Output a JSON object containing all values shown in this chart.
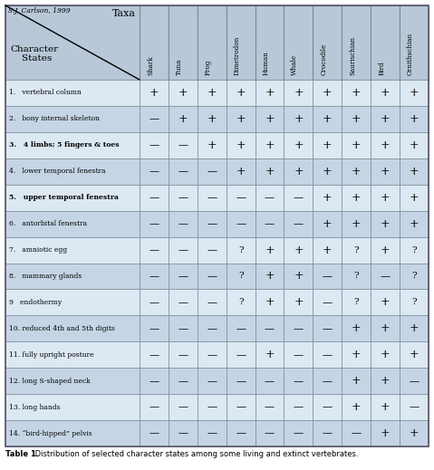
{
  "title_author": "S.J. Carlson, 1999",
  "taxa": [
    "Shark",
    "Tuna",
    "Frog",
    "Dimetrodon",
    "Human",
    "Whale",
    "Crocodile",
    "Saurischian",
    "Bird",
    "Ornithschian"
  ],
  "characters": [
    "1.   vertebral column",
    "2.   bony internal skeleton",
    "3.   4 limbs; 5 fingers & toes",
    "4.   lower temporal fenestra",
    "5.   upper temporal fenestra",
    "6.   antorbital fenestra",
    "7.   amniotic egg",
    "8.   mammary glands",
    "9   endothermy",
    "10. reduced 4th and 5th digits",
    "11. fully upright posture",
    "12. long S-shaped neck",
    "13. long hands",
    "14. “bird-hipped” pelvis"
  ],
  "bold_rows": [
    3,
    5
  ],
  "data": [
    [
      "+",
      "+",
      "+",
      "+",
      "+",
      "+",
      "+",
      "+",
      "+",
      "+"
    ],
    [
      "—",
      "+",
      "+",
      "+",
      "+",
      "+",
      "+",
      "+",
      "+",
      "+"
    ],
    [
      "—",
      "—",
      "+",
      "+",
      "+",
      "+",
      "+",
      "+",
      "+",
      "+"
    ],
    [
      "—",
      "—",
      "—",
      "+",
      "+",
      "+",
      "+",
      "+",
      "+",
      "+"
    ],
    [
      "—",
      "—",
      "—",
      "—",
      "—",
      "—",
      "+",
      "+",
      "+",
      "+"
    ],
    [
      "—",
      "—",
      "—",
      "—",
      "—",
      "—",
      "+",
      "+",
      "+",
      "+"
    ],
    [
      "—",
      "—",
      "—",
      "?",
      "+",
      "+",
      "+",
      "?",
      "+",
      "?"
    ],
    [
      "—",
      "—",
      "—",
      "?",
      "+",
      "+",
      "—",
      "?",
      "—",
      "?"
    ],
    [
      "—",
      "—",
      "—",
      "?",
      "+",
      "+",
      "—",
      "?",
      "+",
      "?"
    ],
    [
      "—",
      "—",
      "—",
      "—",
      "—",
      "—",
      "—",
      "+",
      "+",
      "+"
    ],
    [
      "—",
      "—",
      "—",
      "—",
      "+",
      "—",
      "—",
      "+",
      "+",
      "+"
    ],
    [
      "—",
      "—",
      "—",
      "—",
      "—",
      "—",
      "—",
      "+",
      "+",
      "—"
    ],
    [
      "—",
      "—",
      "—",
      "—",
      "—",
      "—",
      "—",
      "+",
      "+",
      "—"
    ],
    [
      "—",
      "—",
      "—",
      "—",
      "—",
      "—",
      "—",
      "—",
      "+",
      "+"
    ]
  ],
  "row_colors_light": "#dce8f2",
  "row_colors_dark": "#c5d5e5",
  "header_color": "#b8c8d8",
  "border_color": "#7a8a9a",
  "caption_bold": "Table 1.",
  "caption_rest": " Distribution of selected character states among some living and extinct vertebrates.",
  "fig_bg": "#ffffff",
  "outer_border": "#555566"
}
